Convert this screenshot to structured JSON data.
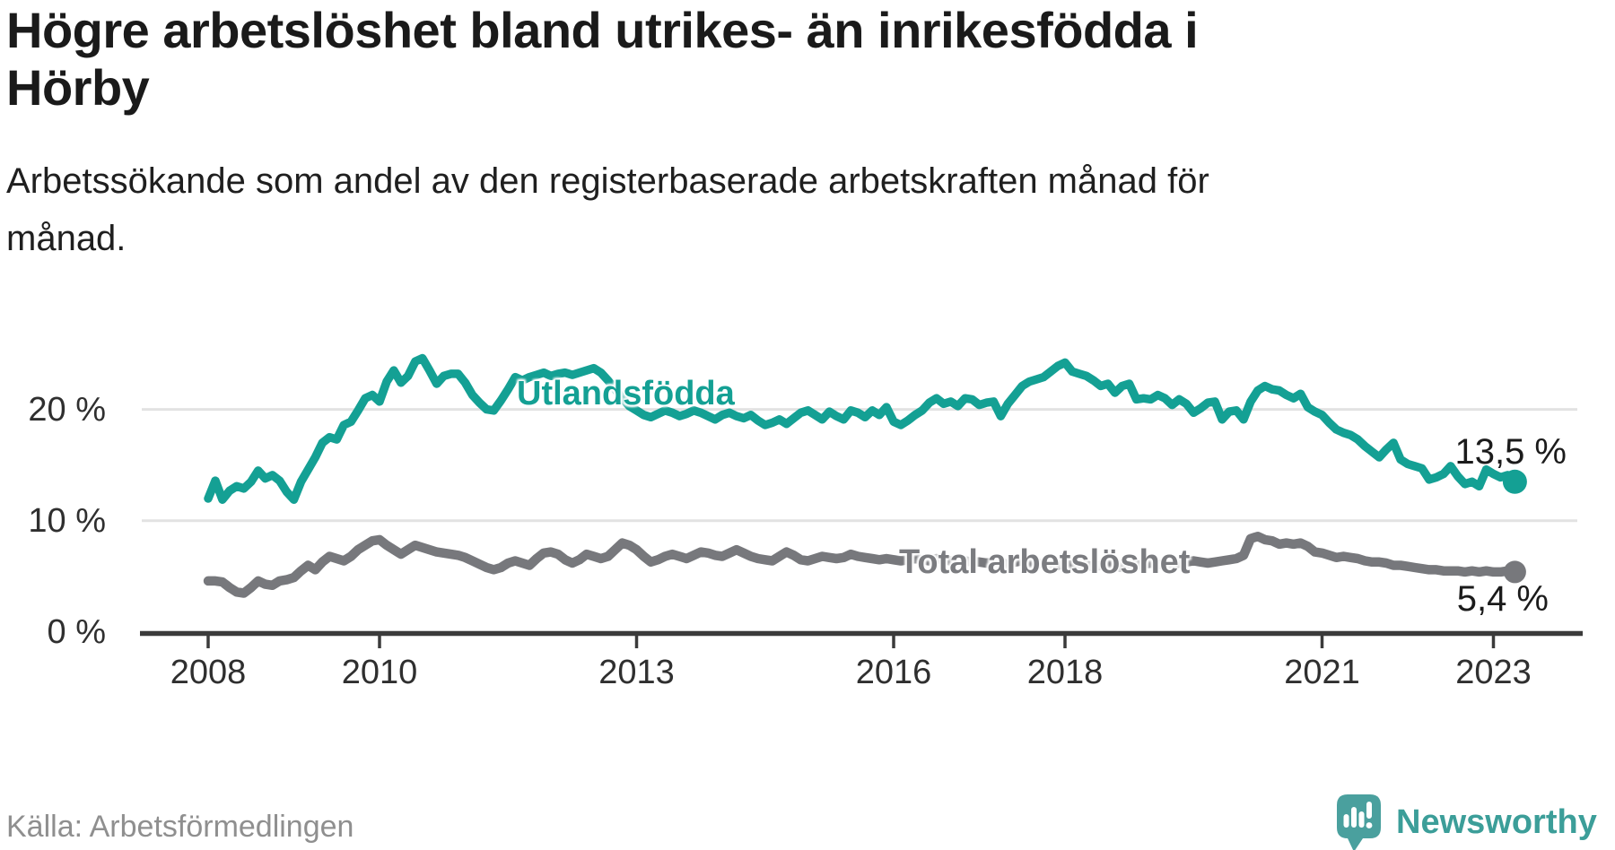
{
  "title_lines": [
    "Högre arbetslöshet bland utrikes- än inrikesfödda i",
    "Hörby"
  ],
  "subtitle_lines": [
    "Arbetssökande som andel av den registerbaserade arbetskraften månad för",
    "månad."
  ],
  "source": "Källa: Arbetsförmedlingen",
  "logo": {
    "wordmark": "Newsworthy",
    "bubble_color": "#4AA09E",
    "text_color": "#3C9E99"
  },
  "appearance": {
    "background": "#FFFFFF",
    "axis_color": "#3B3B3B",
    "grid_color": "#E2E2E2",
    "tick_label_color": "#2F2F2F",
    "value_label_color": "#1B1B1B"
  },
  "chart_data": {
    "type": "line",
    "title": "Högre arbetslöshet bland utrikes- än inrikesfödda i Hörby",
    "subtitle": "Arbetssökande som andel av den registerbaserade arbetskraften månad för månad.",
    "x_unit": "month",
    "x_start": "2008-01",
    "x_end": "2023-04",
    "grid": "horizontal",
    "legend_position": "inline-labels",
    "ylim": [
      0,
      29
    ],
    "y_ticks": [
      {
        "label": "0 %",
        "value": 0
      },
      {
        "label": "10 %",
        "value": 10
      },
      {
        "label": "20 %",
        "value": 20
      }
    ],
    "x_ticks": [
      {
        "label": "2008",
        "year": 2008
      },
      {
        "label": "2010",
        "year": 2010
      },
      {
        "label": "2013",
        "year": 2013
      },
      {
        "label": "2016",
        "year": 2016
      },
      {
        "label": "2018",
        "year": 2018
      },
      {
        "label": "2021",
        "year": 2021
      },
      {
        "label": "2023",
        "year": 2023
      }
    ],
    "series": [
      {
        "name": "Utlandsfödda",
        "color": "#14A094",
        "end_value": 13.5,
        "end_value_label": "13,5 %",
        "values": [
          12.0,
          13.6,
          11.9,
          12.7,
          13.1,
          12.9,
          13.5,
          14.5,
          13.8,
          14.1,
          13.6,
          12.6,
          11.9,
          13.5,
          14.6,
          15.7,
          17.0,
          17.5,
          17.3,
          18.6,
          18.9,
          19.9,
          21.0,
          21.3,
          20.7,
          22.5,
          23.5,
          22.4,
          23.0,
          24.3,
          24.6,
          23.5,
          22.3,
          23.0,
          23.2,
          23.2,
          22.4,
          21.3,
          20.6,
          20.0,
          19.9,
          20.8,
          21.8,
          22.9,
          22.6,
          22.9,
          23.1,
          23.3,
          23.0,
          23.2,
          23.3,
          23.1,
          23.3,
          23.5,
          23.7,
          23.3,
          22.6,
          21.8,
          21.0,
          20.3,
          19.9,
          19.5,
          19.3,
          19.6,
          19.9,
          19.7,
          19.4,
          19.6,
          19.9,
          19.7,
          19.4,
          19.1,
          19.5,
          19.7,
          19.4,
          19.2,
          19.5,
          19.0,
          18.6,
          18.8,
          19.1,
          18.7,
          19.2,
          19.7,
          19.9,
          19.5,
          19.1,
          19.8,
          19.4,
          19.1,
          19.9,
          19.7,
          19.3,
          19.9,
          19.5,
          20.2,
          18.9,
          18.6,
          19.0,
          19.5,
          19.9,
          20.6,
          21.0,
          20.5,
          20.7,
          20.3,
          21.0,
          20.9,
          20.4,
          20.6,
          20.7,
          19.4,
          20.5,
          21.3,
          22.1,
          22.5,
          22.7,
          22.9,
          23.4,
          23.9,
          24.2,
          23.4,
          23.2,
          23.0,
          22.6,
          22.1,
          22.3,
          21.5,
          22.1,
          22.3,
          20.9,
          21.0,
          20.9,
          21.3,
          21.0,
          20.4,
          20.9,
          20.5,
          19.7,
          20.1,
          20.6,
          20.7,
          19.1,
          19.8,
          19.9,
          19.1,
          20.7,
          21.7,
          22.1,
          21.8,
          21.7,
          21.3,
          21.0,
          21.4,
          20.2,
          19.8,
          19.5,
          18.8,
          18.2,
          17.9,
          17.7,
          17.3,
          16.7,
          16.2,
          15.7,
          16.4,
          17.0,
          15.5,
          15.1,
          14.9,
          14.7,
          13.7,
          13.9,
          14.2,
          14.9,
          14.0,
          13.3,
          13.5,
          13.1,
          14.6,
          14.2,
          13.9,
          14.1,
          13.5
        ]
      },
      {
        "name": "Total arbetslöshet",
        "color": "#77787C",
        "end_value": 5.4,
        "end_value_label": "5,4 %",
        "values": [
          4.6,
          4.6,
          4.5,
          4.0,
          3.6,
          3.5,
          4.0,
          4.6,
          4.3,
          4.2,
          4.6,
          4.7,
          4.9,
          5.5,
          6.0,
          5.6,
          6.3,
          6.8,
          6.6,
          6.4,
          6.8,
          7.4,
          7.8,
          8.2,
          8.3,
          7.8,
          7.4,
          7.0,
          7.4,
          7.8,
          7.6,
          7.4,
          7.2,
          7.1,
          7.0,
          6.9,
          6.7,
          6.4,
          6.1,
          5.8,
          5.6,
          5.8,
          6.2,
          6.4,
          6.2,
          6.0,
          6.6,
          7.1,
          7.2,
          7.0,
          6.5,
          6.2,
          6.5,
          7.0,
          6.8,
          6.6,
          6.8,
          7.4,
          8.0,
          7.8,
          7.4,
          6.8,
          6.3,
          6.5,
          6.8,
          7.0,
          6.8,
          6.6,
          6.9,
          7.2,
          7.1,
          6.9,
          6.8,
          7.1,
          7.4,
          7.1,
          6.8,
          6.6,
          6.5,
          6.4,
          6.8,
          7.2,
          6.9,
          6.5,
          6.4,
          6.6,
          6.8,
          6.7,
          6.6,
          6.7,
          7.0,
          6.8,
          6.7,
          6.6,
          6.5,
          6.6,
          6.5,
          6.4,
          6.5,
          6.6,
          6.5,
          6.4,
          6.6,
          6.5,
          6.4,
          6.3,
          6.4,
          6.3,
          6.3,
          6.2,
          6.3,
          6.2,
          6.1,
          6.3,
          6.4,
          6.2,
          6.1,
          6.2,
          6.1,
          6.0,
          6.1,
          6.0,
          5.9,
          6.0,
          5.9,
          6.0,
          6.1,
          5.9,
          5.8,
          5.9,
          6.0,
          6.1,
          6.2,
          6.1,
          6.0,
          6.1,
          6.2,
          6.3,
          6.4,
          6.3,
          6.2,
          6.3,
          6.4,
          6.5,
          6.6,
          6.9,
          8.4,
          8.6,
          8.3,
          8.2,
          7.9,
          8.0,
          7.9,
          8.0,
          7.7,
          7.2,
          7.1,
          6.9,
          6.7,
          6.8,
          6.7,
          6.6,
          6.4,
          6.3,
          6.3,
          6.2,
          6.0,
          6.0,
          5.9,
          5.8,
          5.7,
          5.6,
          5.6,
          5.5,
          5.5,
          5.5,
          5.4,
          5.5,
          5.4,
          5.5,
          5.4,
          5.4,
          5.5,
          5.4
        ]
      }
    ]
  }
}
